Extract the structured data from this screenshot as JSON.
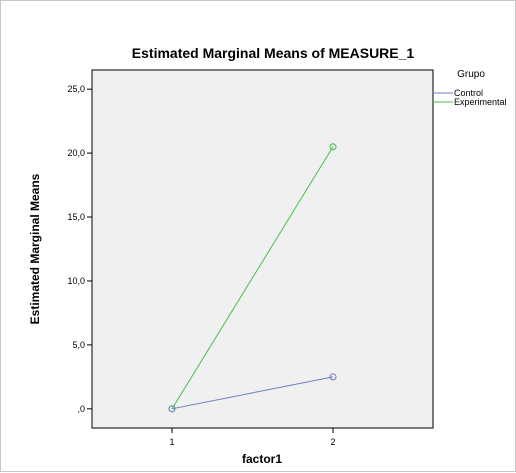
{
  "chart_data": {
    "type": "line",
    "title": "Estimated Marginal Means of MEASURE_1",
    "xlabel": "factor1",
    "ylabel": "Estimated Marginal Means",
    "categories": [
      "1",
      "2"
    ],
    "ylim": [
      -1.5,
      26.5
    ],
    "yticks": [
      0,
      5,
      10,
      15,
      20,
      25
    ],
    "ytick_labels": [
      ",0",
      "5,0",
      "10,0",
      "15,0",
      "20,0",
      "25,0"
    ],
    "grid": false,
    "legend": {
      "title": "Grupo",
      "placement": "right"
    },
    "series": [
      {
        "name": "Control",
        "values": [
          0.0,
          2.5
        ],
        "color": "#6b7fbf"
      },
      {
        "name": "Experimental",
        "values": [
          0.0,
          20.5
        ],
        "color": "#48c048"
      }
    ],
    "plot_background": "#f0f0f0"
  }
}
